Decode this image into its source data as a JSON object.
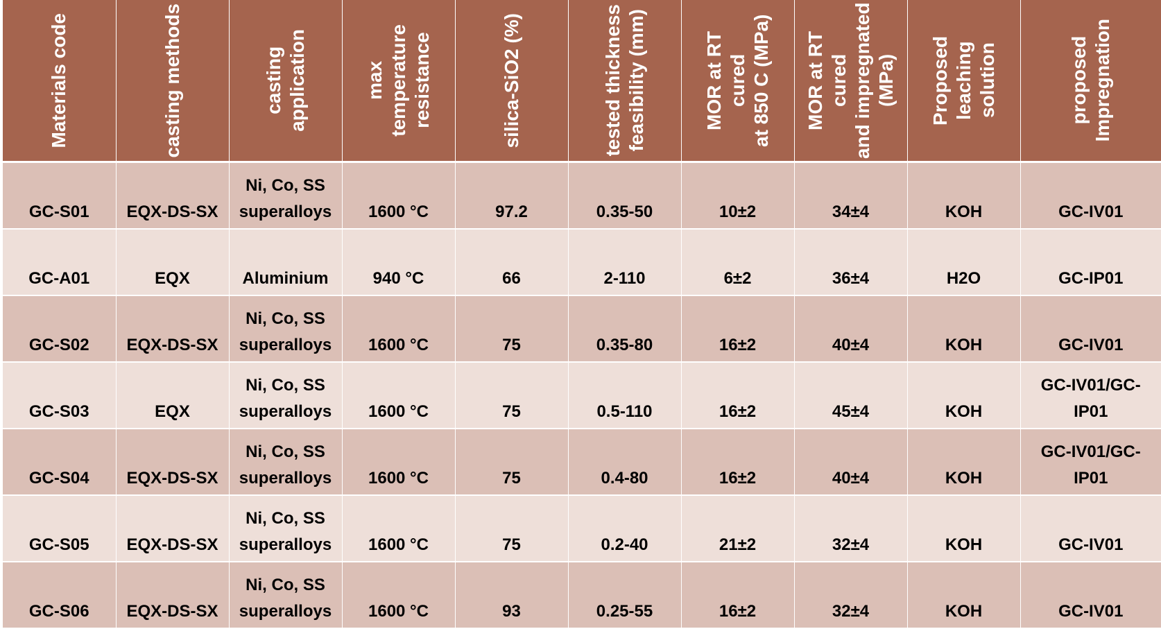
{
  "colors": {
    "header_bg": "#a5644e",
    "row_dark": "#dbbfb6",
    "row_light": "#eedfd9",
    "header_text": "#ffffff",
    "body_text": "#000000"
  },
  "table": {
    "headers": [
      "Materials code",
      "casting methods",
      "casting\napplication",
      "max\ntemperature\nresistance",
      "silica-SiO2 (%)",
      "tested thickness\nfeasibility (mm)",
      "MOR at RT cured\nat 850 C (MPa)",
      "MOR at RT cured\nand impregnated\n(MPa)",
      "Proposed\nleaching solution",
      "proposed\nImpregnation"
    ],
    "rows": [
      [
        "GC-S01",
        "EQX-DS-SX",
        "Ni, Co, SS\nsuperalloys",
        "1600 °C",
        "97.2",
        "0.35-50",
        "10±2",
        "34±4",
        "KOH",
        "GC-IV01"
      ],
      [
        "GC-A01",
        "EQX",
        "Aluminium",
        "940 °C",
        "66",
        "2-110",
        "6±2",
        "36±4",
        "H2O",
        "GC-IP01"
      ],
      [
        "GC-S02",
        "EQX-DS-SX",
        "Ni, Co, SS\nsuperalloys",
        "1600 °C",
        "75",
        "0.35-80",
        "16±2",
        "40±4",
        "KOH",
        "GC-IV01"
      ],
      [
        "GC-S03",
        "EQX",
        "Ni, Co, SS\nsuperalloys",
        "1600 °C",
        "75",
        "0.5-110",
        "16±2",
        "45±4",
        "KOH",
        "GC-IV01/GC-\nIP01"
      ],
      [
        "GC-S04",
        "EQX-DS-SX",
        "Ni, Co, SS\nsuperalloys",
        "1600 °C",
        "75",
        "0.4-80",
        "16±2",
        "40±4",
        "KOH",
        "GC-IV01/GC-\nIP01"
      ],
      [
        "GC-S05",
        "EQX-DS-SX",
        "Ni, Co, SS\nsuperalloys",
        "1600 °C",
        "75",
        "0.2-40",
        "21±2",
        "32±4",
        "KOH",
        "GC-IV01"
      ],
      [
        "GC-S06",
        "EQX-DS-SX",
        "Ni, Co, SS\nsuperalloys",
        "1600 °C",
        "93",
        "0.25-55",
        "16±2",
        "32±4",
        "KOH",
        "GC-IV01"
      ]
    ]
  }
}
